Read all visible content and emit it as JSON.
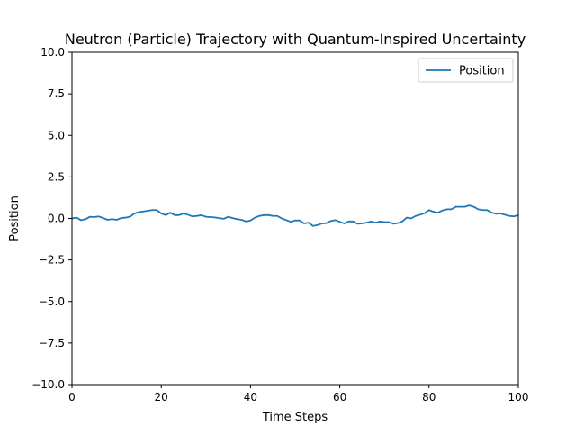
{
  "chart_data": {
    "type": "line",
    "title": "Neutron (Particle) Trajectory with Quantum-Inspired Uncertainty",
    "xlabel": "Time Steps",
    "ylabel": "Position",
    "xlim": [
      0,
      100
    ],
    "ylim": [
      -10,
      10
    ],
    "x_ticks": [
      0,
      20,
      40,
      60,
      80,
      100
    ],
    "x_tick_labels": [
      "0",
      "20",
      "40",
      "60",
      "80",
      "100"
    ],
    "y_ticks": [
      10,
      7.5,
      5,
      2.5,
      0,
      -2.5,
      -5,
      -7.5,
      -10
    ],
    "y_tick_labels": [
      "10.0",
      "7.5",
      "5.0",
      "2.5",
      "0.0",
      "−2.5",
      "−5.0",
      "−7.5",
      "−10.0"
    ],
    "grid": false,
    "legend": {
      "position": "top-right"
    },
    "series": [
      {
        "name": "Position",
        "color": "#1f77b4",
        "x": [
          0,
          1,
          2,
          3,
          4,
          5,
          6,
          7,
          8,
          9,
          10,
          11,
          12,
          13,
          14,
          15,
          16,
          17,
          18,
          19,
          20,
          21,
          22,
          23,
          24,
          25,
          26,
          27,
          28,
          29,
          30,
          31,
          32,
          33,
          34,
          35,
          36,
          37,
          38,
          39,
          40,
          41,
          42,
          43,
          44,
          45,
          46,
          47,
          48,
          49,
          50,
          51,
          52,
          53,
          54,
          55,
          56,
          57,
          58,
          59,
          60,
          61,
          62,
          63,
          64,
          65,
          66,
          67,
          68,
          69,
          70,
          71,
          72,
          73,
          74,
          75,
          76,
          77,
          78,
          79,
          80,
          81,
          82,
          83,
          84,
          85,
          86,
          87,
          88,
          89,
          90,
          91,
          92,
          93,
          94,
          95,
          96,
          97,
          98,
          99,
          100
        ],
        "values": [
          0.0,
          0.05,
          -0.1,
          -0.05,
          0.1,
          0.08,
          0.12,
          0.02,
          -0.08,
          -0.04,
          -0.08,
          0.02,
          0.05,
          0.1,
          0.3,
          0.38,
          0.42,
          0.46,
          0.5,
          0.5,
          0.3,
          0.2,
          0.35,
          0.2,
          0.2,
          0.3,
          0.22,
          0.12,
          0.15,
          0.2,
          0.1,
          0.08,
          0.06,
          0.02,
          -0.02,
          0.1,
          0.02,
          -0.04,
          -0.08,
          -0.18,
          -0.12,
          0.05,
          0.15,
          0.2,
          0.2,
          0.15,
          0.15,
          0.0,
          -0.1,
          -0.2,
          -0.12,
          -0.12,
          -0.3,
          -0.25,
          -0.45,
          -0.4,
          -0.3,
          -0.28,
          -0.15,
          -0.1,
          -0.2,
          -0.3,
          -0.18,
          -0.18,
          -0.32,
          -0.3,
          -0.25,
          -0.18,
          -0.25,
          -0.18,
          -0.22,
          -0.22,
          -0.32,
          -0.28,
          -0.18,
          0.05,
          0.0,
          0.15,
          0.22,
          0.32,
          0.5,
          0.4,
          0.35,
          0.48,
          0.55,
          0.55,
          0.7,
          0.7,
          0.7,
          0.78,
          0.7,
          0.55,
          0.5,
          0.5,
          0.35,
          0.28,
          0.3,
          0.22,
          0.15,
          0.12,
          0.2
        ]
      }
    ]
  }
}
